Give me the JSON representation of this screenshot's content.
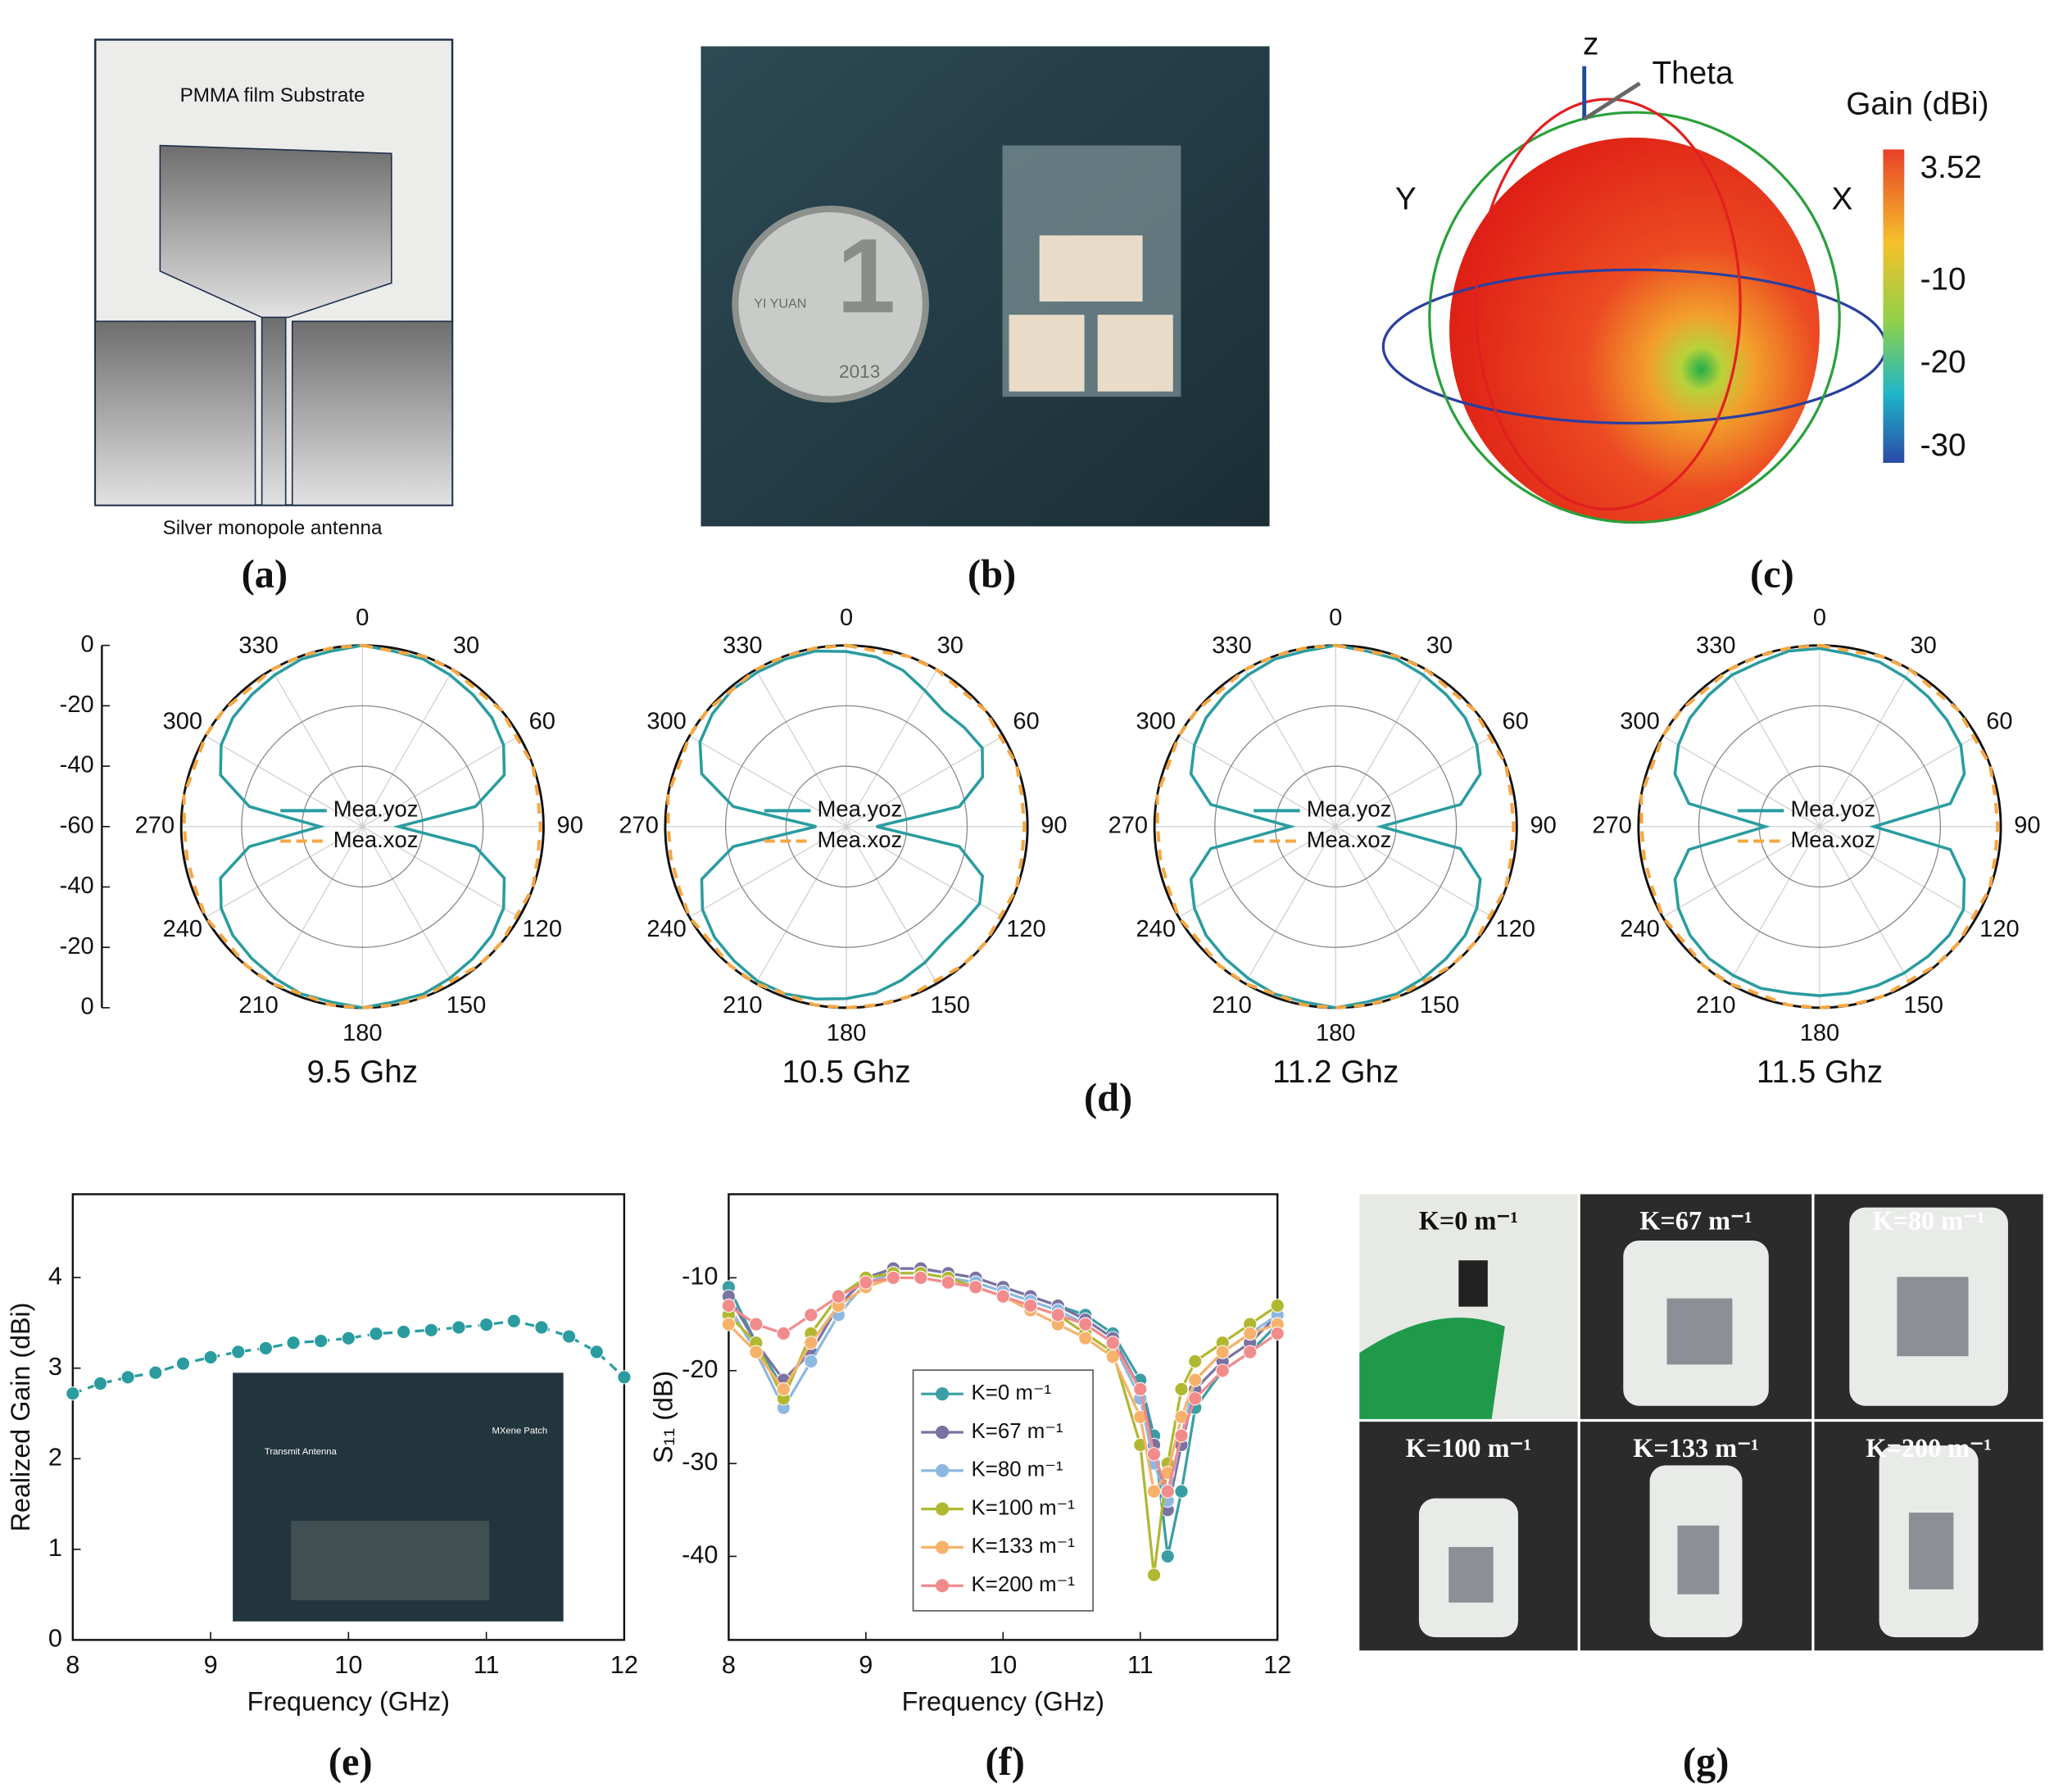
{
  "panels": {
    "a": {
      "label": "(a)",
      "substrate": "PMMA film Substrate",
      "antenna": "Silver monopole antenna"
    },
    "b": {
      "label": "(b)",
      "coin": {
        "numeral": "1",
        "text": "YI YUAN",
        "year": "2013"
      }
    },
    "c": {
      "label": "(c)",
      "axes": {
        "z": "z",
        "theta": "Theta",
        "y": "Y",
        "x": "X"
      },
      "colorbar_title": "Gain (dBi)",
      "colorbar_ticks": [
        3.52,
        -10,
        -20,
        -30
      ]
    },
    "d": {
      "label": "(d)"
    },
    "e": {
      "label": "(e)",
      "inset_labels": [
        "Transmit Antenna",
        "MXene Patch"
      ]
    },
    "f": {
      "label": "(f)"
    },
    "g": {
      "label": "(g)",
      "photos": [
        "K=0 m⁻¹",
        "K=67 m⁻¹",
        "K=80 m⁻¹",
        "K=100 m⁻¹",
        "K=133 m⁻¹",
        "K=200 m⁻¹"
      ]
    }
  },
  "chart_data": [
    {
      "type": "polar",
      "title": "9.5 Ghz",
      "radial_axis": true,
      "rlim": [
        -60,
        0
      ],
      "rticks": [
        -60,
        -40,
        -20,
        0
      ],
      "thetaticks": [
        0,
        30,
        60,
        90,
        120,
        150,
        180,
        210,
        240,
        270,
        300,
        330
      ],
      "theta": [
        0,
        10,
        20,
        30,
        40,
        50,
        60,
        70,
        80,
        90,
        100,
        110,
        120,
        130,
        140,
        150,
        160,
        170,
        180,
        190,
        200,
        210,
        220,
        230,
        240,
        250,
        260,
        270,
        280,
        290,
        300,
        310,
        320,
        330,
        340,
        350
      ],
      "series": [
        {
          "name": "Mea.yoz",
          "color": "#2a9ca0",
          "style": "solid",
          "values": [
            0,
            -1,
            -1,
            -2,
            -3,
            -4,
            -6,
            -10,
            -22,
            -48,
            -22,
            -10,
            -6,
            -4,
            -3,
            -2,
            -1,
            -1,
            0,
            -1,
            -1,
            -2,
            -3,
            -4,
            -6,
            -10,
            -22,
            -46,
            -22,
            -10,
            -6,
            -4,
            -3,
            -2,
            -1,
            -1
          ]
        },
        {
          "name": "Mea.xoz",
          "color": "#f5a742",
          "style": "dashed",
          "values": [
            0,
            -1,
            0,
            0,
            -1,
            0,
            -1,
            0,
            -1,
            -1,
            -1,
            0,
            -1,
            0,
            0,
            -1,
            0,
            0,
            0,
            0,
            -1,
            0,
            0,
            -1,
            0,
            -1,
            -1,
            -1,
            0,
            -1,
            0,
            0,
            -1,
            0,
            0,
            0
          ]
        }
      ]
    },
    {
      "type": "polar",
      "title": "10.5 Ghz",
      "rlim": [
        -60,
        0
      ],
      "rticks": [
        -60,
        -40,
        -20,
        0
      ],
      "thetaticks": [
        0,
        30,
        60,
        90,
        120,
        150,
        180,
        210,
        240,
        270,
        300,
        330
      ],
      "theta": [
        0,
        10,
        20,
        30,
        40,
        50,
        60,
        70,
        80,
        90,
        100,
        110,
        120,
        130,
        140,
        150,
        160,
        170,
        180,
        190,
        200,
        210,
        220,
        230,
        240,
        250,
        260,
        270,
        280,
        290,
        300,
        310,
        320,
        330,
        340,
        350
      ],
      "series": [
        {
          "name": "Mea.yoz",
          "color": "#2a9ca0",
          "style": "solid",
          "values": [
            -2,
            -3,
            -5,
            -8,
            -10,
            -9,
            -8,
            -12,
            -22,
            -50,
            -22,
            -12,
            -9,
            -10,
            -10,
            -8,
            -6,
            -4,
            -3,
            -2,
            -1,
            -1,
            -2,
            -3,
            -5,
            -9,
            -22,
            -50,
            -22,
            -9,
            -4,
            -2,
            -1,
            -1,
            -1,
            -1
          ]
        },
        {
          "name": "Mea.xoz",
          "color": "#f5a742",
          "style": "dashed",
          "values": [
            0,
            -1,
            0,
            0,
            -1,
            0,
            -1,
            0,
            -1,
            -1,
            -1,
            0,
            -1,
            0,
            0,
            -1,
            0,
            0,
            0,
            0,
            -1,
            0,
            0,
            -1,
            0,
            -1,
            -1,
            -1,
            0,
            -1,
            0,
            0,
            -1,
            0,
            0,
            0
          ]
        }
      ]
    },
    {
      "type": "polar",
      "title": "11.2 Ghz",
      "rlim": [
        -60,
        0
      ],
      "rticks": [
        -60,
        -40,
        -20,
        0
      ],
      "thetaticks": [
        0,
        30,
        60,
        90,
        120,
        150,
        180,
        210,
        240,
        270,
        300,
        330
      ],
      "theta": [
        0,
        10,
        20,
        30,
        40,
        50,
        60,
        70,
        80,
        90,
        100,
        110,
        120,
        130,
        140,
        150,
        160,
        170,
        180,
        190,
        200,
        210,
        220,
        230,
        240,
        250,
        260,
        270,
        280,
        290,
        300,
        310,
        320,
        330,
        340,
        350
      ],
      "series": [
        {
          "name": "Mea.yoz",
          "color": "#2a9ca0",
          "style": "solid",
          "values": [
            0,
            -1,
            -1,
            -2,
            -3,
            -4,
            -6,
            -9,
            -18,
            -45,
            -18,
            -9,
            -6,
            -4,
            -3,
            -2,
            -1,
            -1,
            0,
            -1,
            -1,
            -2,
            -3,
            -4,
            -6,
            -9,
            -18,
            -45,
            -18,
            -9,
            -6,
            -4,
            -3,
            -2,
            -1,
            -1
          ]
        },
        {
          "name": "Mea.xoz",
          "color": "#f5a742",
          "style": "dashed",
          "values": [
            0,
            -1,
            0,
            0,
            -1,
            0,
            -1,
            0,
            -1,
            -1,
            -1,
            0,
            -1,
            0,
            0,
            -1,
            0,
            0,
            0,
            0,
            -1,
            0,
            0,
            -1,
            0,
            -1,
            -1,
            -1,
            0,
            -1,
            0,
            0,
            -1,
            0,
            0,
            0
          ]
        }
      ]
    },
    {
      "type": "polar",
      "title": "11.5 Ghz",
      "rlim": [
        -60,
        0
      ],
      "rticks": [
        -60,
        -40,
        -20,
        0
      ],
      "thetaticks": [
        0,
        30,
        60,
        90,
        120,
        150,
        180,
        210,
        240,
        270,
        300,
        330
      ],
      "theta": [
        0,
        10,
        20,
        30,
        40,
        50,
        60,
        70,
        80,
        90,
        100,
        110,
        120,
        130,
        140,
        150,
        160,
        170,
        180,
        190,
        200,
        210,
        220,
        230,
        240,
        250,
        260,
        270,
        280,
        290,
        300,
        310,
        320,
        330,
        340,
        350
      ],
      "series": [
        {
          "name": "Mea.yoz",
          "color": "#2a9ca0",
          "style": "solid",
          "values": [
            -1,
            -2,
            -2,
            -3,
            -4,
            -5,
            -6,
            -9,
            -16,
            -42,
            -16,
            -9,
            -5,
            -4,
            -4,
            -4,
            -4,
            -4,
            -4,
            -4,
            -3,
            -3,
            -3,
            -4,
            -6,
            -9,
            -16,
            -42,
            -16,
            -9,
            -6,
            -4,
            -3,
            -2,
            -2,
            -1
          ]
        },
        {
          "name": "Mea.xoz",
          "color": "#f5a742",
          "style": "dashed",
          "values": [
            0,
            -1,
            0,
            0,
            -1,
            0,
            -1,
            0,
            -1,
            -1,
            -1,
            0,
            -1,
            0,
            0,
            -1,
            0,
            0,
            0,
            0,
            -1,
            0,
            0,
            -1,
            0,
            -1,
            -1,
            -1,
            0,
            -1,
            0,
            0,
            -1,
            0,
            0,
            0
          ]
        }
      ]
    },
    {
      "type": "line",
      "x_label": "Frequency (GHz)",
      "y_label": "Realized Gain (dBi)",
      "line_style": "dashed",
      "markers": true,
      "color": "#2a9ca0",
      "x": [
        8,
        8.2,
        8.4,
        8.6,
        8.8,
        9,
        9.2,
        9.4,
        9.6,
        9.8,
        10,
        10.2,
        10.4,
        10.6,
        10.8,
        11,
        11.2,
        11.4,
        11.6,
        11.8,
        12
      ],
      "values": [
        2.72,
        2.83,
        2.9,
        2.95,
        3.05,
        3.12,
        3.18,
        3.22,
        3.28,
        3.3,
        3.33,
        3.38,
        3.4,
        3.42,
        3.45,
        3.48,
        3.52,
        3.45,
        3.35,
        3.18,
        2.9
      ],
      "xlim": [
        8,
        12
      ],
      "ylim": [
        0,
        4.92
      ],
      "xticks": [
        8,
        9,
        10,
        11,
        12
      ],
      "yticks": [
        0,
        1,
        2,
        3,
        4
      ]
    },
    {
      "type": "line",
      "x_label": "Frequency (GHz)",
      "y_label": "S₁₁ (dB)",
      "line_style": "solid",
      "markers": true,
      "legend": "lower center",
      "x": [
        8,
        8.2,
        8.4,
        8.6,
        8.8,
        9,
        9.2,
        9.4,
        9.6,
        9.8,
        10,
        10.2,
        10.4,
        10.6,
        10.8,
        11,
        11.1,
        11.2,
        11.3,
        11.4,
        11.6,
        11.8,
        12
      ],
      "series": [
        {
          "name": "K=0 m⁻¹",
          "color": "#3a9ea5",
          "values": [
            -11,
            -17,
            -22,
            -17,
            -13,
            -10,
            -9,
            -9,
            -9.5,
            -10,
            -11,
            -12,
            -13,
            -14,
            -16,
            -21,
            -27,
            -40,
            -33,
            -24,
            -20,
            -18,
            -15
          ]
        },
        {
          "name": "K=67 m⁻¹",
          "color": "#7b72a3",
          "values": [
            -12,
            -17,
            -21,
            -18,
            -13,
            -10,
            -9,
            -9,
            -9.5,
            -10,
            -11,
            -12,
            -13,
            -14.5,
            -16.5,
            -22,
            -28,
            -35,
            -28,
            -22,
            -19,
            -17,
            -14
          ]
        },
        {
          "name": "K=80 m⁻¹",
          "color": "#8fb8e0",
          "values": [
            -13,
            -18,
            -24,
            -19,
            -14,
            -10.5,
            -9.5,
            -9.5,
            -10,
            -10.5,
            -11.5,
            -12.5,
            -13.5,
            -15,
            -17,
            -23,
            -30,
            -34,
            -27,
            -21,
            -18,
            -16,
            -14
          ]
        },
        {
          "name": "K=100 m⁻¹",
          "color": "#b0b832",
          "values": [
            -14,
            -17,
            -23,
            -16,
            -12,
            -10,
            -9.5,
            -9.5,
            -10,
            -11,
            -12,
            -13,
            -14,
            -16,
            -18,
            -28,
            -42,
            -30,
            -22,
            -19,
            -17,
            -15,
            -13
          ]
        },
        {
          "name": "K=133 m⁻¹",
          "color": "#f6b26b",
          "values": [
            -15,
            -18,
            -22,
            -17,
            -13,
            -11,
            -10,
            -10,
            -10.5,
            -11,
            -12,
            -13.5,
            -15,
            -16.5,
            -18.5,
            -25,
            -33,
            -31,
            -25,
            -21,
            -18,
            -16,
            -15
          ]
        },
        {
          "name": "K=200 m⁻¹",
          "color": "#f28b8b",
          "values": [
            -13,
            -15,
            -16,
            -14,
            -12,
            -10.5,
            -10,
            -10,
            -10.5,
            -11,
            -12,
            -13,
            -14,
            -15,
            -17,
            -22,
            -29,
            -33,
            -27,
            -23,
            -20,
            -18,
            -16
          ]
        }
      ],
      "xlim": [
        8,
        12
      ],
      "ylim": [
        -49,
        -1
      ],
      "xticks": [
        8,
        9,
        10,
        11,
        12
      ],
      "yticks": [
        -10,
        -20,
        -30,
        -40
      ]
    }
  ]
}
